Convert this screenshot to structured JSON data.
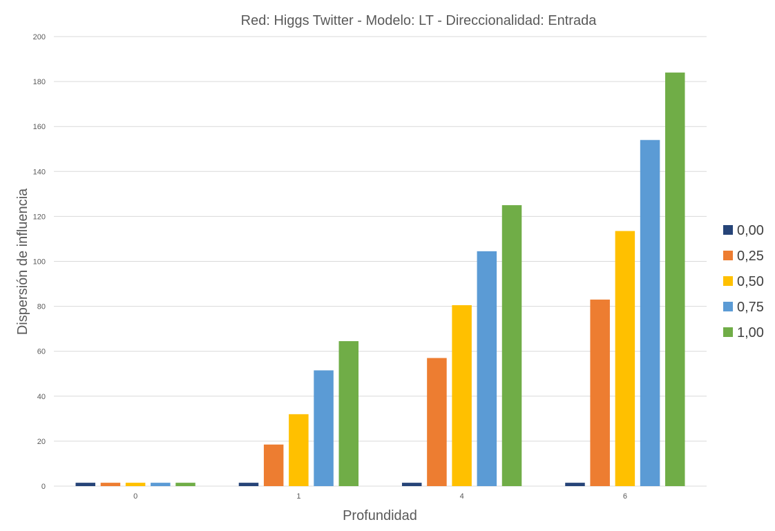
{
  "chart_data": {
    "type": "bar",
    "title": "Red: Higgs Twitter - Modelo: LT - Direccionalidad: Entrada",
    "xlabel": "Profundidad",
    "ylabel": "Dispersión de influencia",
    "categories": [
      "0",
      "1",
      "4",
      "6"
    ],
    "series": [
      {
        "name": "0,00",
        "color": "#264478",
        "values": [
          1.5,
          1.5,
          1.5,
          1.5
        ]
      },
      {
        "name": "0,25",
        "color": "#ed7d31",
        "values": [
          1.5,
          18.5,
          57,
          83
        ]
      },
      {
        "name": "0,50",
        "color": "#ffc000",
        "values": [
          1.5,
          32,
          80.5,
          113.5
        ]
      },
      {
        "name": "0,75",
        "color": "#5b9bd5",
        "values": [
          1.5,
          51.5,
          104.5,
          154
        ]
      },
      {
        "name": "1,00",
        "color": "#70ad47",
        "values": [
          1.5,
          64.5,
          125,
          184
        ]
      }
    ],
    "ylim": [
      0,
      200
    ],
    "yticks": [
      "0",
      "20",
      "40",
      "60",
      "80",
      "100",
      "120",
      "140",
      "160",
      "180",
      "200"
    ],
    "grid": true,
    "legend_position": "right"
  }
}
